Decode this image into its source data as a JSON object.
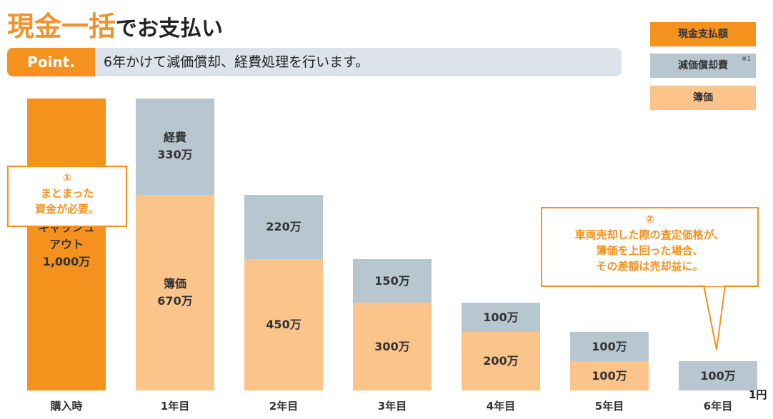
{
  "chart_data": {
    "type": "stacked-bar",
    "title_accent": "現金一括",
    "title_rest": "でお支払い",
    "point_badge": "Point.",
    "point_text": "6年かけて減価償却、経費処理を行います。",
    "categories": [
      "購入時",
      "1年目",
      "2年目",
      "3年目",
      "4年目",
      "5年目",
      "6年目"
    ],
    "series": [
      {
        "name": "現金支払額",
        "color": "#f5921e",
        "values": [
          1000,
          null,
          null,
          null,
          null,
          null,
          null
        ],
        "value_labels": [
          "キャッシュ\nアウト\n1,000万",
          null,
          null,
          null,
          null,
          null,
          null
        ]
      },
      {
        "name": "減価償却費",
        "color": "#b8c6cf",
        "values": [
          null,
          330,
          220,
          150,
          100,
          100,
          100
        ],
        "value_labels": [
          null,
          "経費\n330万",
          "220万",
          "150万",
          "100万",
          "100万",
          "100万"
        ]
      },
      {
        "name": "簿価",
        "color": "#fbc48b",
        "values": [
          null,
          670,
          450,
          300,
          200,
          100,
          0.0001
        ],
        "value_labels": [
          null,
          "簿価\n670万",
          "450万",
          "300万",
          "200万",
          "100万",
          "1円"
        ]
      }
    ],
    "legend_note": "※1",
    "annotations": [
      "①\nまとまった\n資金が必要。",
      "②\n車両売却した際の査定価格が、\n簿価を上回った場合、\nその差額は売却益に。"
    ]
  }
}
